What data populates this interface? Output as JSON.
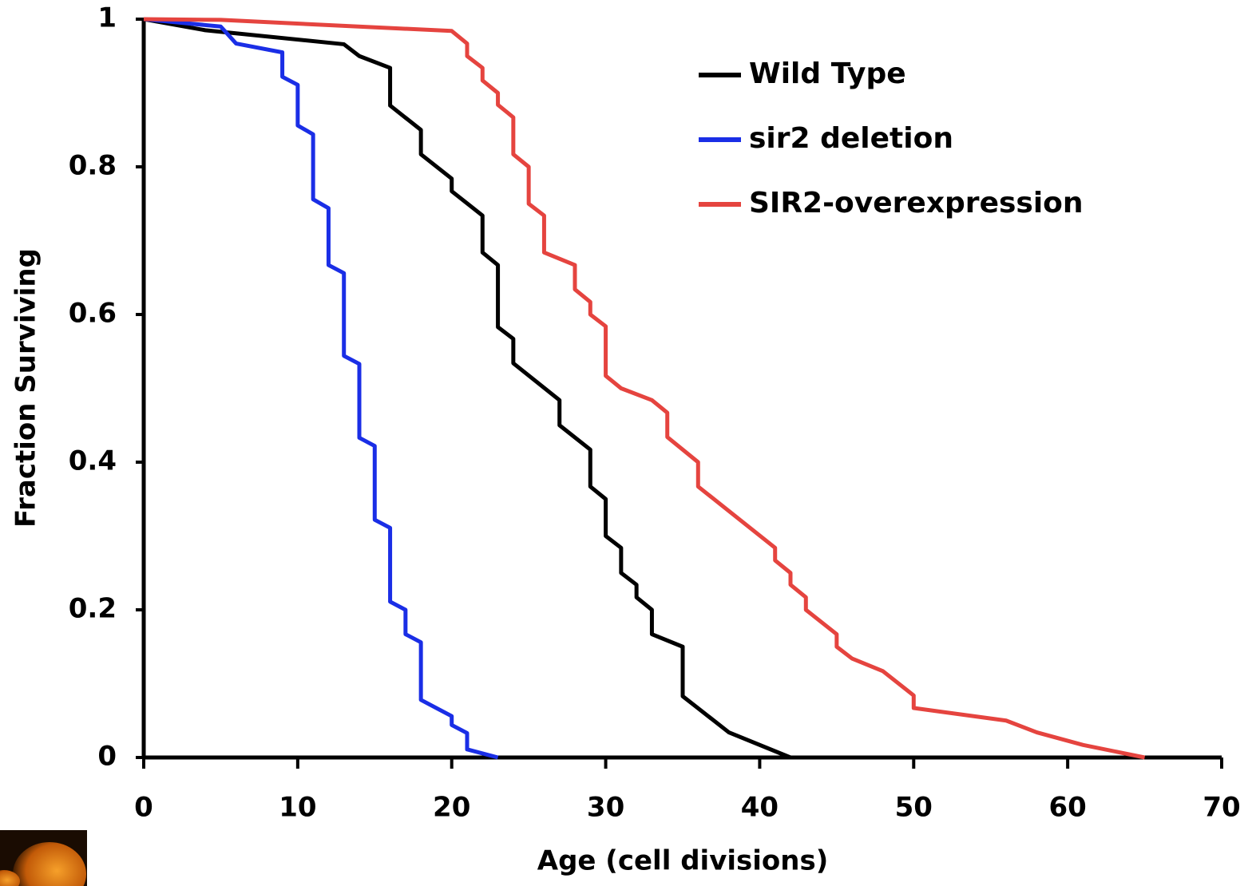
{
  "chart_data": {
    "type": "line",
    "x_label": "Age (cell divisions)",
    "y_label": "Fraction Surviving",
    "xlim": [
      0,
      70
    ],
    "ylim": [
      0,
      1
    ],
    "xticks": [
      0,
      10,
      20,
      30,
      40,
      50,
      60,
      70
    ],
    "yticks": [
      0,
      0.2,
      0.4,
      0.6,
      0.8,
      1
    ],
    "series": [
      {
        "name": "Wild Type",
        "color": "#000000",
        "x": [
          0,
          4,
          13,
          14,
          16,
          16,
          18,
          18,
          20,
          20,
          22,
          22,
          23,
          23,
          24,
          24,
          27,
          27,
          29,
          29,
          30,
          30,
          31,
          31,
          32,
          32,
          33,
          33,
          35,
          35,
          38,
          42
        ],
        "values": [
          1,
          0.985,
          0.966,
          0.95,
          0.934,
          0.883,
          0.85,
          0.817,
          0.784,
          0.767,
          0.734,
          0.684,
          0.667,
          0.583,
          0.567,
          0.534,
          0.484,
          0.45,
          0.417,
          0.367,
          0.35,
          0.3,
          0.284,
          0.25,
          0.234,
          0.217,
          0.2,
          0.167,
          0.15,
          0.083,
          0.034,
          0
        ]
      },
      {
        "name": "sir2 deletion",
        "color": "#1a2ee6",
        "x": [
          0,
          5,
          6,
          9,
          9,
          10,
          10,
          11,
          11,
          12,
          12,
          13,
          13,
          14,
          14,
          15,
          15,
          16,
          16,
          17,
          17,
          18,
          18,
          20,
          20,
          21,
          21,
          23
        ],
        "values": [
          1,
          0.99,
          0.967,
          0.955,
          0.922,
          0.911,
          0.856,
          0.844,
          0.756,
          0.744,
          0.667,
          0.656,
          0.544,
          0.533,
          0.433,
          0.422,
          0.322,
          0.311,
          0.211,
          0.2,
          0.167,
          0.156,
          0.078,
          0.056,
          0.044,
          0.033,
          0.011,
          0
        ]
      },
      {
        "name": "SIR2-overexpression",
        "color": "#e5443f",
        "x": [
          0,
          5,
          20,
          21,
          21,
          22,
          22,
          23,
          23,
          24,
          24,
          25,
          25,
          26,
          26,
          28,
          28,
          29,
          29,
          30,
          30,
          31,
          33,
          34,
          34,
          36,
          36,
          41,
          41,
          42,
          42,
          43,
          43,
          45,
          45,
          46,
          48,
          50,
          50,
          56,
          58,
          61,
          65
        ],
        "values": [
          1,
          0.999,
          0.984,
          0.967,
          0.95,
          0.934,
          0.917,
          0.9,
          0.884,
          0.867,
          0.817,
          0.8,
          0.75,
          0.734,
          0.684,
          0.667,
          0.634,
          0.617,
          0.6,
          0.584,
          0.517,
          0.5,
          0.484,
          0.467,
          0.434,
          0.4,
          0.367,
          0.284,
          0.267,
          0.25,
          0.234,
          0.217,
          0.2,
          0.167,
          0.15,
          0.134,
          0.117,
          0.084,
          0.067,
          0.05,
          0.034,
          0.017,
          0
        ]
      }
    ]
  }
}
